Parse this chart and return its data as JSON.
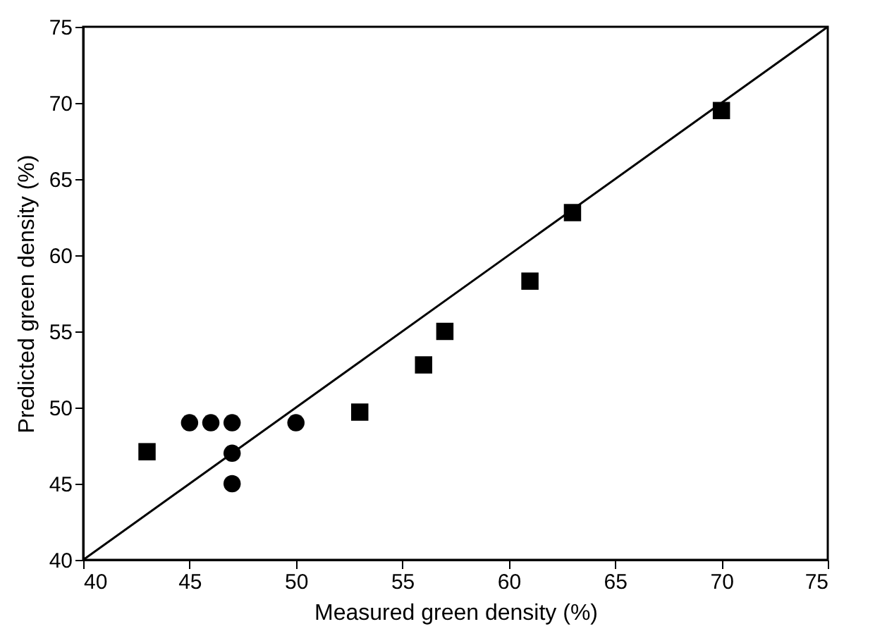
{
  "chart_data": {
    "type": "scatter",
    "xlabel": "Measured green density (%)",
    "ylabel": "Predicted green density (%)",
    "xlim": [
      40,
      75
    ],
    "ylim": [
      40,
      75
    ],
    "xticks": [
      40,
      45,
      50,
      55,
      60,
      65,
      70,
      75
    ],
    "yticks": [
      40,
      45,
      50,
      55,
      60,
      65,
      70,
      75
    ],
    "grid": false,
    "series": [
      {
        "type": "line",
        "color": "#000000",
        "marker": "none",
        "x": [
          40,
          75
        ],
        "values": [
          40,
          75
        ]
      },
      {
        "color": "#000000",
        "marker": "circle",
        "x": [
          45,
          46,
          47,
          47,
          47,
          50
        ],
        "values": [
          49.0,
          49.0,
          49.0,
          47.0,
          45.0,
          49.0
        ]
      },
      {
        "color": "#000000",
        "marker": "square",
        "x": [
          43,
          53,
          56,
          57,
          61,
          63,
          70
        ],
        "values": [
          47.1,
          49.7,
          52.8,
          55.0,
          58.3,
          62.8,
          69.5
        ]
      }
    ]
  }
}
